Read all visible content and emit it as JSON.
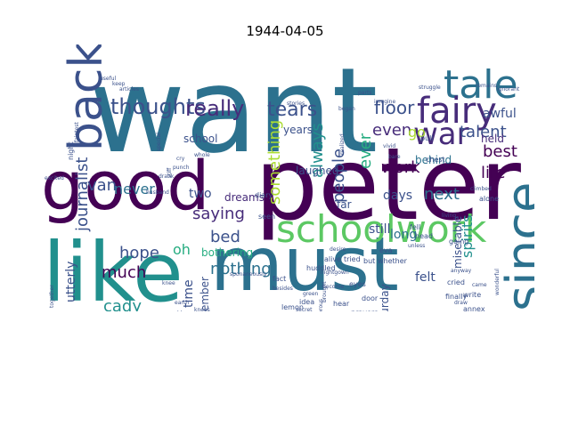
{
  "title": "1944-04-05",
  "colors": {
    "dark-purple": "#440154",
    "purple": "#472c7a",
    "indigo": "#3b518b",
    "blue": "#2c718e",
    "teal": "#21908d",
    "green-teal": "#27ad81",
    "green": "#5cc863",
    "yellow-green": "#aadc32"
  },
  "words": [
    {
      "text": "want",
      "color": "#2c718e"
    },
    {
      "text": "peter",
      "color": "#440154"
    },
    {
      "text": "like",
      "color": "#21908d"
    },
    {
      "text": "must",
      "color": "#2c718e"
    },
    {
      "text": "good",
      "color": "#440154"
    },
    {
      "text": "schoolwork",
      "color": "#5cc863"
    },
    {
      "text": "tale",
      "color": "#2c718e"
    },
    {
      "text": "fairy",
      "color": "#472c7a"
    },
    {
      "text": "war",
      "color": "#472c7a"
    },
    {
      "text": "since",
      "color": "#2c718e"
    },
    {
      "text": "back",
      "color": "#3b518b"
    },
    {
      "text": "thoughts",
      "color": "#3b518b"
    },
    {
      "text": "really",
      "color": "#472c7a"
    },
    {
      "text": "tears",
      "color": "#3b518b"
    },
    {
      "text": "floor",
      "color": "#3b518b"
    },
    {
      "text": "even",
      "color": "#472c7a"
    },
    {
      "text": "talent",
      "color": "#3b518b"
    },
    {
      "text": "journalist",
      "color": "#3b518b"
    },
    {
      "text": "something",
      "color": "#aadc32"
    },
    {
      "text": "always",
      "color": "#21908d"
    },
    {
      "text": "people",
      "color": "#3b518b"
    },
    {
      "text": "ever",
      "color": "#27ad81"
    },
    {
      "text": "work",
      "color": "#440154"
    },
    {
      "text": "best",
      "color": "#440154"
    },
    {
      "text": "life",
      "color": "#440154"
    },
    {
      "text": "awful",
      "color": "#3b518b"
    },
    {
      "text": "held",
      "color": "#472c7a"
    },
    {
      "text": "go",
      "color": "#aadc32"
    },
    {
      "text": "laughed",
      "color": "#3b518b"
    },
    {
      "text": "next",
      "color": "#2c718e"
    },
    {
      "text": "van",
      "color": "#3b518b"
    },
    {
      "text": "never",
      "color": "#2c718e"
    },
    {
      "text": "two",
      "color": "#3b518b"
    },
    {
      "text": "dreams",
      "color": "#472c7a"
    },
    {
      "text": "saying",
      "color": "#472c7a"
    },
    {
      "text": "school",
      "color": "#3b518b"
    },
    {
      "text": "years",
      "color": "#3b518b"
    },
    {
      "text": "far",
      "color": "#3b518b"
    },
    {
      "text": "days",
      "color": "#3b518b"
    },
    {
      "text": "behind",
      "color": "#2c718e"
    },
    {
      "text": "bed",
      "color": "#3b518b"
    },
    {
      "text": "hope",
      "color": "#3b518b"
    },
    {
      "text": "oh",
      "color": "#27ad81"
    },
    {
      "text": "nothing",
      "color": "#2c718e"
    },
    {
      "text": "much",
      "color": "#440154"
    },
    {
      "text": "bothering",
      "color": "#27ad81"
    },
    {
      "text": "long",
      "color": "#2c718e"
    },
    {
      "text": "spirits",
      "color": "#21908d"
    },
    {
      "text": "miserable",
      "color": "#3b518b"
    },
    {
      "text": "still",
      "color": "#3b518b"
    },
    {
      "text": "felt",
      "color": "#3b518b"
    },
    {
      "text": "cady",
      "color": "#21908d"
    },
    {
      "text": "utterly",
      "color": "#3b518b"
    },
    {
      "text": "end",
      "color": "#3b518b"
    },
    {
      "text": "know",
      "color": "#3b518b"
    },
    {
      "text": "away",
      "color": "#21908d"
    },
    {
      "text": "time",
      "color": "#3b518b"
    },
    {
      "text": "september",
      "color": "#3b518b"
    },
    {
      "text": "unreal",
      "color": "#2c718e"
    },
    {
      "text": "seemed",
      "color": "#3b518b"
    },
    {
      "text": "filled",
      "color": "#3b518b"
    },
    {
      "text": "saturday",
      "color": "#3b518b"
    },
    {
      "text": "diary",
      "color": "#3b518b"
    },
    {
      "text": "seen",
      "color": "#3b518b"
    },
    {
      "text": "eva",
      "color": "#3b518b"
    },
    {
      "text": "huddled",
      "color": "#3b518b"
    },
    {
      "text": "alive",
      "color": "#3b518b"
    },
    {
      "text": "tried",
      "color": "#3b518b"
    },
    {
      "text": "but",
      "color": "#3b518b"
    },
    {
      "text": "whether",
      "color": "#3b518b"
    },
    {
      "text": "going",
      "color": "#3b518b"
    },
    {
      "text": "fell",
      "color": "#3b518b"
    },
    {
      "text": "head",
      "color": "#3b518b"
    },
    {
      "text": "finally",
      "color": "#3b518b"
    },
    {
      "text": "cried",
      "color": "#3b518b"
    },
    {
      "text": "door",
      "color": "#3b518b"
    },
    {
      "text": "hear",
      "color": "#3b518b"
    },
    {
      "text": "eyes",
      "color": "#3b518b"
    },
    {
      "text": "fact",
      "color": "#3b518b"
    },
    {
      "text": "idea",
      "color": "#3b518b"
    },
    {
      "text": "lemon",
      "color": "#3b518b"
    },
    {
      "text": "prayers",
      "color": "#3b518b"
    },
    {
      "text": "unusual",
      "color": "#3b518b"
    },
    {
      "text": "chest",
      "color": "#3b518b"
    },
    {
      "text": "pull",
      "color": "#3b518b"
    },
    {
      "text": "stories",
      "color": "#3b518b"
    },
    {
      "text": "began",
      "color": "#3b518b"
    },
    {
      "text": "parts",
      "color": "#3b518b"
    },
    {
      "text": "struggle",
      "color": "#3b518b"
    },
    {
      "text": "remains",
      "color": "#3b518b"
    },
    {
      "text": "ignorant",
      "color": "#3b518b"
    },
    {
      "text": "night",
      "color": "#3b518b"
    },
    {
      "text": "faintest",
      "color": "#3b518b"
    },
    {
      "text": "excited",
      "color": "#3b518b"
    },
    {
      "text": "cheerful",
      "color": "#3b518b"
    },
    {
      "text": "fervently",
      "color": "#3b518b"
    },
    {
      "text": "together",
      "color": "#3b518b"
    },
    {
      "text": "minute",
      "color": "#3b518b"
    },
    {
      "text": "sitting",
      "color": "#3b518b"
    },
    {
      "text": "brag",
      "color": "#3b518b"
    },
    {
      "text": "cry",
      "color": "#3b518b"
    },
    {
      "text": "whole",
      "color": "#3b518b"
    },
    {
      "text": "punch",
      "color": "#3b518b"
    },
    {
      "text": "drank",
      "color": "#3b518b"
    },
    {
      "text": "knee",
      "color": "#3b518b"
    },
    {
      "text": "knees",
      "color": "#3b518b"
    },
    {
      "text": "also",
      "color": "#3b518b"
    },
    {
      "text": "anyone",
      "color": "#3b518b"
    },
    {
      "text": "sob",
      "color": "#3b518b"
    },
    {
      "text": "alone",
      "color": "#3b518b"
    },
    {
      "text": "climbed",
      "color": "#3b518b"
    },
    {
      "text": "write",
      "color": "#3b518b"
    },
    {
      "text": "daans",
      "color": "#3b518b"
    },
    {
      "text": "draw",
      "color": "#3b518b"
    },
    {
      "text": "nightgown",
      "color": "#3b518b"
    },
    {
      "text": "annex",
      "color": "#3b518b"
    },
    {
      "text": "special",
      "color": "#3b518b"
    },
    {
      "text": "realized",
      "color": "#3b518b"
    },
    {
      "text": "vivid",
      "color": "#3b518b"
    },
    {
      "text": "bare",
      "color": "#3b518b"
    },
    {
      "text": "choked",
      "color": "#3b518b"
    },
    {
      "text": "become",
      "color": "#3b518b"
    },
    {
      "text": "descriptions",
      "color": "#3b518b"
    },
    {
      "text": "position",
      "color": "#3b518b"
    },
    {
      "text": "wonderful",
      "color": "#3b518b"
    },
    {
      "text": "imagine",
      "color": "#3b518b"
    },
    {
      "text": "useful",
      "color": "#3b518b"
    },
    {
      "text": "keep",
      "color": "#3b518b"
    },
    {
      "text": "articles",
      "color": "#3b518b"
    },
    {
      "text": "desire",
      "color": "#3b518b"
    },
    {
      "text": "brought",
      "color": "#3b518b"
    },
    {
      "text": "sponaneously",
      "color": "#3b518b"
    },
    {
      "text": "husband",
      "color": "#3b518b"
    },
    {
      "text": "earth",
      "color": "#3b518b"
    },
    {
      "text": "get",
      "color": "#3b518b"
    },
    {
      "text": "odd",
      "color": "#3b518b"
    },
    {
      "text": "books",
      "color": "#3b518b"
    },
    {
      "text": "besides",
      "color": "#3b518b"
    },
    {
      "text": "humorous",
      "color": "#3b518b"
    },
    {
      "text": "unless",
      "color": "#3b518b"
    },
    {
      "text": "green",
      "color": "#3b518b"
    },
    {
      "text": "cold",
      "color": "#3b518b"
    },
    {
      "text": "stiff",
      "color": "#3b518b"
    },
    {
      "text": "secret",
      "color": "#3b518b"
    },
    {
      "text": "came",
      "color": "#3b518b"
    },
    {
      "text": "living",
      "color": "#3b518b"
    },
    {
      "text": "ability",
      "color": "#3b518b"
    },
    {
      "text": "anyway",
      "color": "#3b518b"
    },
    {
      "text": "ride",
      "color": "#3b518b"
    }
  ]
}
